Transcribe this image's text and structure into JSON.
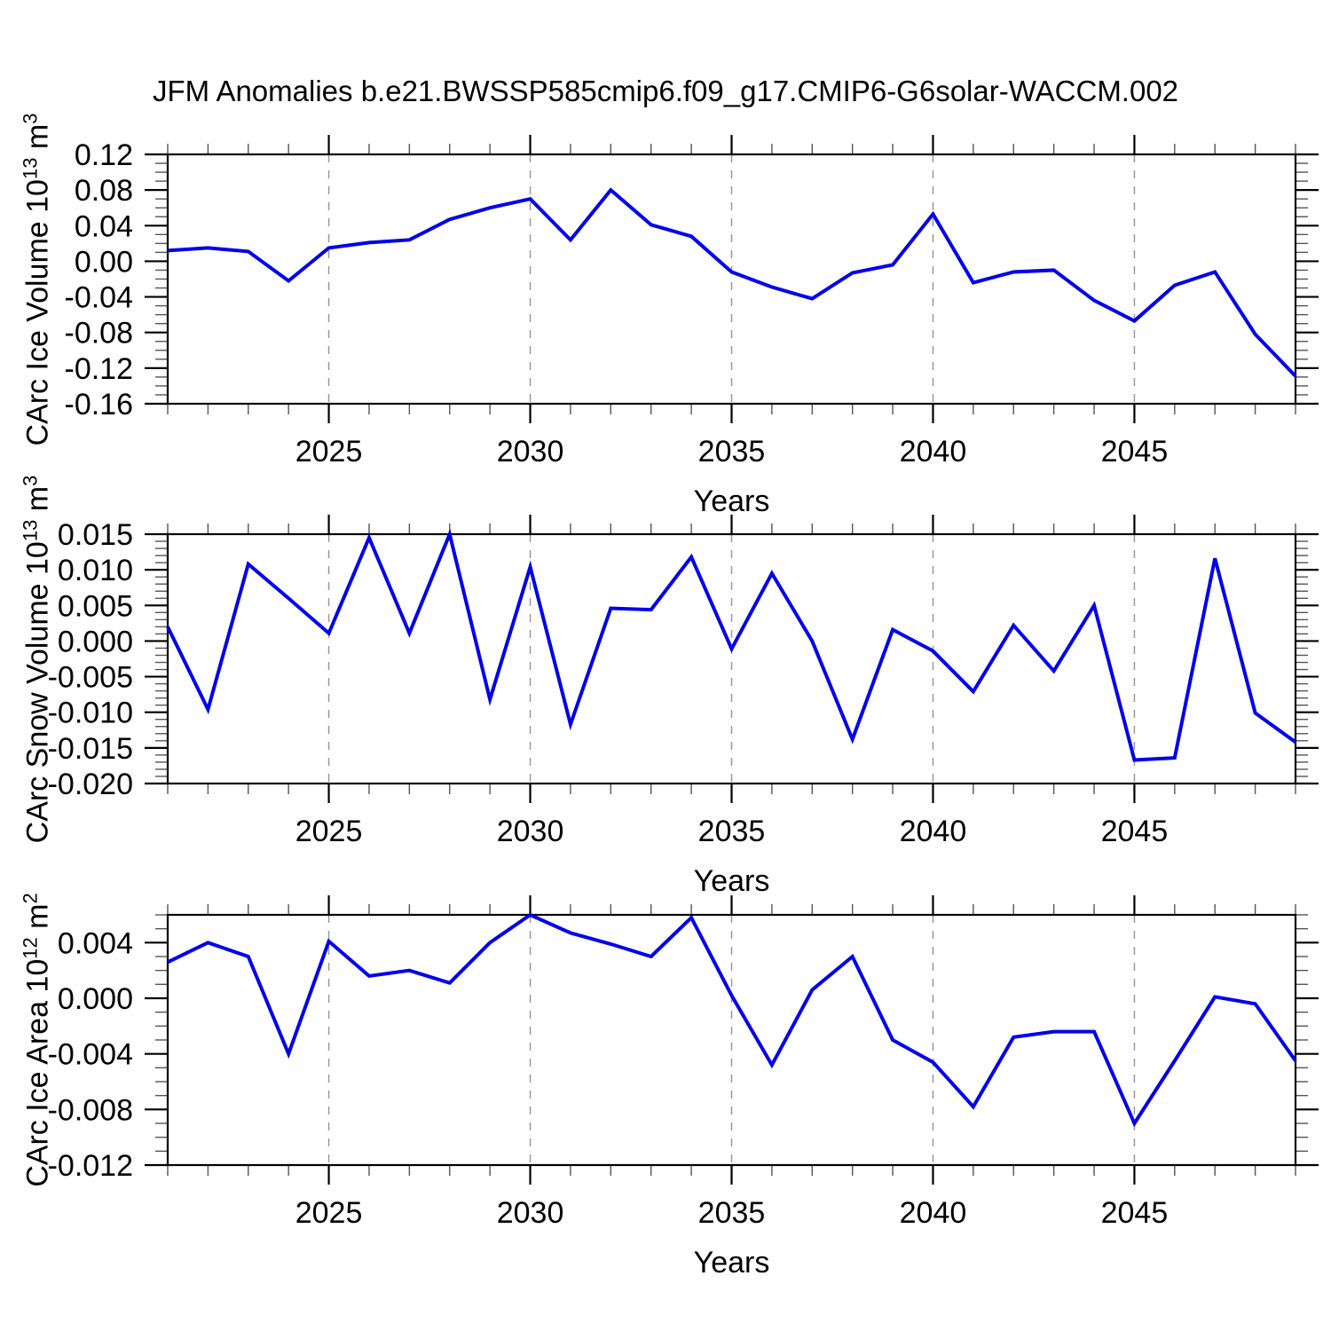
{
  "title": "JFM Anomalies b.e21.BWSSP585cmip6.f09_g17.CMIP6-G6solar-WACCM.002",
  "colors": {
    "line": "#0000ee",
    "grid": "#999999",
    "axis": "#000000",
    "minor_tick": "#555555",
    "background": "#ffffff",
    "text": "#000000"
  },
  "x_axis": {
    "label": "Years",
    "range": [
      2021,
      2049
    ],
    "years": [
      2021,
      2022,
      2023,
      2024,
      2025,
      2026,
      2027,
      2028,
      2029,
      2030,
      2031,
      2032,
      2033,
      2034,
      2035,
      2036,
      2037,
      2038,
      2039,
      2040,
      2041,
      2042,
      2043,
      2044,
      2045,
      2046,
      2047,
      2048,
      2049
    ],
    "tick_years": [
      2025,
      2030,
      2035,
      2040,
      2045
    ],
    "tick_labels": [
      "2025",
      "2030",
      "2035",
      "2040",
      "2045"
    ],
    "gridlines": "vertical-dashed-at-major-ticks"
  },
  "chart_data": [
    {
      "type": "line",
      "name": "carc-ice-volume",
      "ylabel": "CArc Ice Volume 10^13 m^3",
      "ylabel_parts": {
        "base": "CArc Ice Volume 10",
        "exp1": "13",
        "mid": " m",
        "exp2": "3"
      },
      "xlabel": "Years",
      "x": {
        "start": 2021,
        "end": 2049,
        "step": 1
      },
      "values": [
        0.012,
        0.015,
        0.011,
        -0.022,
        0.015,
        0.021,
        0.024,
        0.047,
        0.06,
        0.07,
        0.024,
        0.08,
        0.041,
        0.028,
        -0.012,
        -0.029,
        -0.042,
        -0.013,
        -0.004,
        0.053,
        -0.024,
        -0.012,
        -0.01,
        -0.044,
        -0.067,
        -0.027,
        -0.012,
        -0.082,
        -0.129
      ],
      "ylim": [
        -0.16,
        0.12
      ],
      "yticks": [
        0.12,
        0.08,
        0.04,
        0,
        -0.04,
        -0.08,
        -0.12,
        -0.16
      ],
      "ytick_labels": [
        "0.12",
        "0.08",
        "0.04",
        "0.00",
        "-0.04",
        "-0.08",
        "-0.12",
        "-0.16"
      ],
      "y_minor_step": 0.01,
      "xticks": [
        2025,
        2030,
        2035,
        2040,
        2045
      ],
      "grid": "vertical-dashed",
      "legend": "none"
    },
    {
      "type": "line",
      "name": "carc-snow-volume",
      "ylabel": "CArc Snow Volume 10^13 m^3",
      "ylabel_parts": {
        "base": "CArc Snow Volume 10",
        "exp1": "13",
        "mid": " m",
        "exp2": "3"
      },
      "xlabel": "Years",
      "x": {
        "start": 2021,
        "end": 2049,
        "step": 1
      },
      "values": [
        0.002,
        -0.0096,
        0.0108,
        0.006,
        0.0011,
        0.0145,
        0.0011,
        0.015,
        -0.0082,
        0.0104,
        -0.0117,
        0.0046,
        0.0044,
        0.0118,
        -0.0011,
        0.0095,
        0.0,
        -0.0138,
        0.0016,
        -0.0014,
        -0.0071,
        0.0022,
        -0.0042,
        0.005,
        -0.0167,
        -0.0164,
        0.0116,
        -0.0101,
        -0.0142
      ],
      "ylim": [
        -0.02,
        0.015
      ],
      "yticks": [
        0.015,
        0.01,
        0.005,
        0,
        -0.005,
        -0.01,
        -0.015,
        -0.02
      ],
      "ytick_labels": [
        "0.015",
        "0.010",
        "0.005",
        "0.000",
        "-0.005",
        "-0.010",
        "-0.015",
        "-0.020"
      ],
      "y_minor_step": 0.001,
      "xticks": [
        2025,
        2030,
        2035,
        2040,
        2045
      ],
      "grid": "vertical-dashed",
      "legend": "none"
    },
    {
      "type": "line",
      "name": "carc-ice-area",
      "ylabel": "CArc Ice Area 10^12 m^2",
      "ylabel_parts": {
        "base": "CArc Ice Area 10",
        "exp1": "12",
        "mid": " m",
        "exp2": "2"
      },
      "xlabel": "Years",
      "x": {
        "start": 2021,
        "end": 2049,
        "step": 1
      },
      "values": [
        0.0026,
        0.004,
        0.003,
        -0.004,
        0.0041,
        0.0016,
        0.002,
        0.0011,
        0.004,
        0.006,
        0.0047,
        0.0039,
        0.003,
        0.0058,
        0.0002,
        -0.0048,
        0.0006,
        0.003,
        -0.003,
        -0.0046,
        -0.0078,
        -0.0028,
        -0.0024,
        -0.0024,
        -0.009,
        -0.0045,
        0.0001,
        -0.0004,
        -0.0045
      ],
      "ylim": [
        -0.012,
        0.006
      ],
      "yticks": [
        0.004,
        0,
        -0.004,
        -0.008,
        -0.012
      ],
      "ytick_labels": [
        "0.004",
        "0.000",
        "-0.004",
        "-0.008",
        "-0.012"
      ],
      "y_minor_step": 0.001,
      "xticks": [
        2025,
        2030,
        2035,
        2040,
        2045
      ],
      "grid": "vertical-dashed",
      "legend": "none"
    }
  ]
}
